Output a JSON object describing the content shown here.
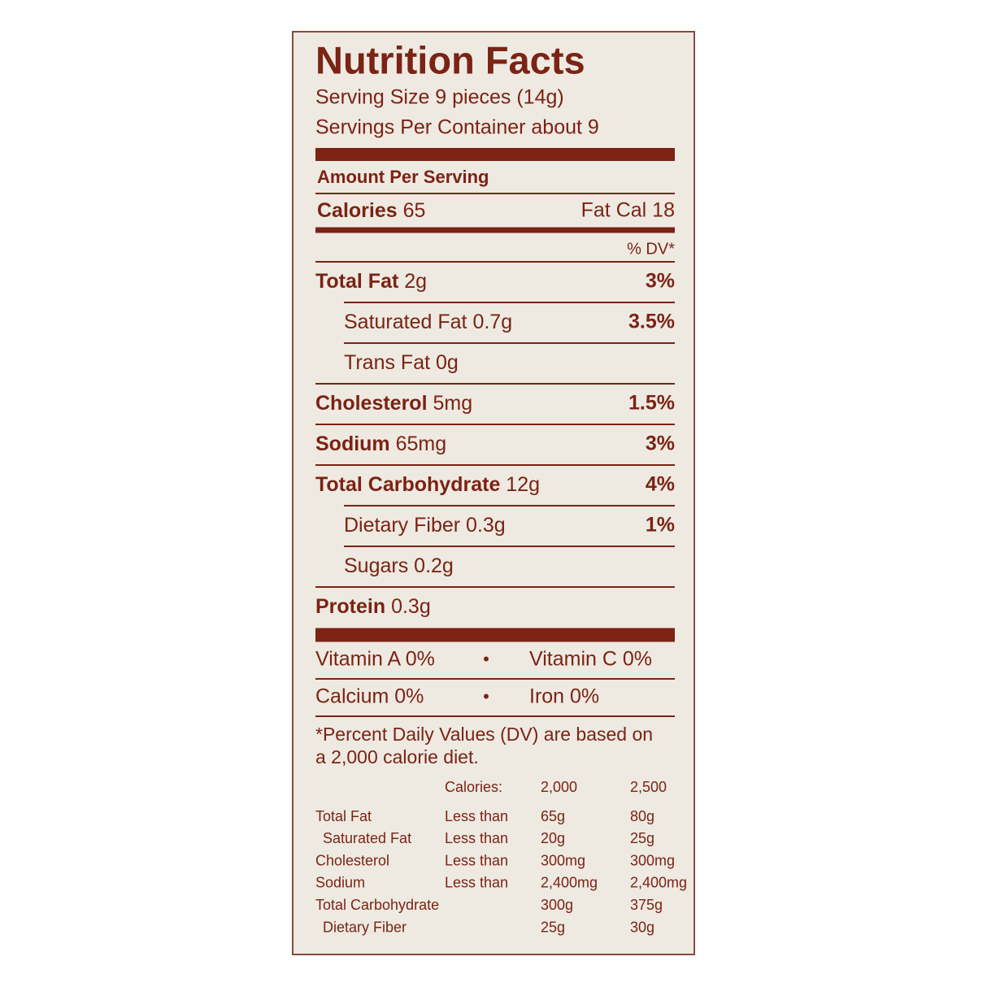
{
  "title": "Nutrition Facts",
  "serving_size": "Serving Size 9 pieces (14g)",
  "servings_per_container": "Servings Per Container about 9",
  "amount_header": "Amount Per Serving",
  "calories": {
    "label": "Calories",
    "value": "65",
    "fat_cal": "Fat Cal 18"
  },
  "dv_header": "% DV*",
  "nutrients": [
    {
      "name": "Total Fat",
      "amount": "2g",
      "dv": "3%",
      "indent": false
    },
    {
      "name": "Saturated Fat",
      "amount": "0.7g",
      "dv": "3.5%",
      "indent": true
    },
    {
      "name": "Trans Fat",
      "amount": "0g",
      "indent": true
    },
    {
      "name": "Cholesterol",
      "amount": "5mg",
      "dv": "1.5%",
      "indent": false
    },
    {
      "name": "Sodium",
      "amount": "65mg",
      "dv": "3%",
      "indent": false
    },
    {
      "name": "Total Carbohydrate",
      "amount": "12g",
      "dv": "4%",
      "indent": false
    },
    {
      "name": "Dietary Fiber",
      "amount": "0.3g",
      "dv": "1%",
      "indent": true
    },
    {
      "name": "Sugars",
      "amount": "0.2g",
      "indent": true
    },
    {
      "name": "Protein",
      "amount": "0.3g",
      "indent": false
    }
  ],
  "vitamins": [
    [
      "Vitamin A  0%",
      "Vitamin C  0%"
    ],
    [
      "Calcium  0%",
      "Iron  0%"
    ]
  ],
  "footnote": [
    "*Percent Daily Values (DV) are based on",
    "a 2,000 calorie diet."
  ],
  "daily_table": {
    "header": [
      "Calories:",
      "2,000",
      "2,500"
    ],
    "rows": [
      [
        "Total Fat",
        "Less than",
        "65g",
        "80g"
      ],
      [
        "Saturated Fat",
        "Less than",
        "20g",
        "25g"
      ],
      [
        "Cholesterol",
        "Less than",
        "300mg",
        "300mg"
      ],
      [
        "Sodium",
        "Less than",
        "2,400mg",
        "2,400mg"
      ],
      [
        "Total Carbohydrate",
        "",
        "300g",
        "375g"
      ],
      [
        "Dietary Fiber",
        "",
        "25g",
        "30g"
      ]
    ]
  }
}
